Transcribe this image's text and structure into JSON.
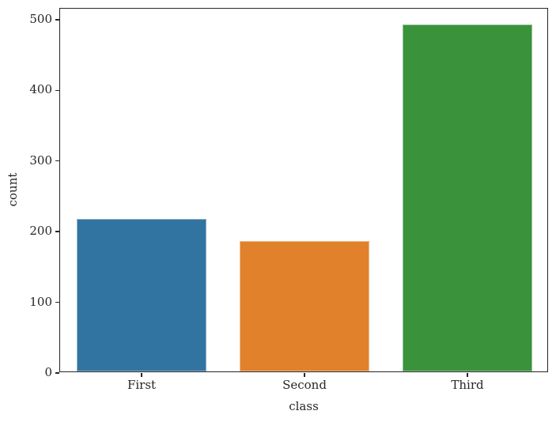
{
  "figure": {
    "background": "#ffffff",
    "text_color": "#262626",
    "spine_color": "#262626"
  },
  "chart_data": {
    "type": "bar",
    "title": "",
    "xlabel": "class",
    "ylabel": "count",
    "categories": [
      "First",
      "Second",
      "Third"
    ],
    "values": [
      216,
      184,
      491
    ],
    "bar_colors": [
      "#3274a1",
      "#e1812c",
      "#3a923a"
    ],
    "ylim": [
      0,
      515.5
    ],
    "yticks": [
      0,
      100,
      200,
      300,
      400,
      500
    ],
    "ytick_labels": [
      "0",
      "100",
      "200",
      "300",
      "400",
      "500"
    ],
    "grid": false,
    "bar_width_fraction": 0.8,
    "legend_position": "none"
  }
}
